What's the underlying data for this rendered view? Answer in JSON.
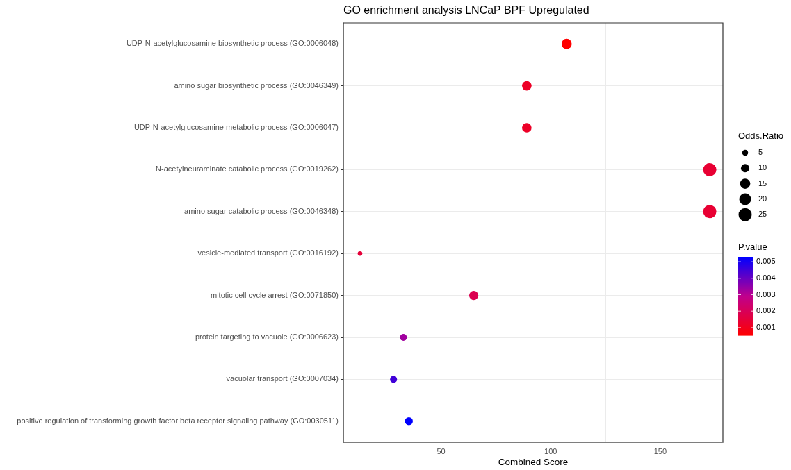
{
  "chart_data": {
    "type": "bubble",
    "title": "GO enrichment analysis LNCaP BPF Upregulated",
    "xlabel": "Combined Score",
    "legend_title": "Odds.Ratio",
    "clabel": "P.value",
    "categories": [
      "UDP-N-acetylglucosamine biosynthetic process (GO:0006048)",
      "amino sugar biosynthetic process (GO:0046349)",
      "UDP-N-acetylglucosamine metabolic process (GO:0006047)",
      "N-acetylneuraminate catabolic process (GO:0019262)",
      "amino sugar catabolic process (GO:0046348)",
      "vesicle-mediated transport (GO:0016192)",
      "mitotic cell cycle arrest (GO:0071850)",
      "protein targeting to vacuole (GO:0006623)",
      "vacuolar transport (GO:0007034)",
      "positive regulation of transforming growth factor beta receptor signaling pathway (GO:0030511)"
    ],
    "orientation": "horizontal",
    "values": [
      107.3,
      89.1,
      89.1,
      172.6,
      172.6,
      13.0,
      64.9,
      32.8,
      28.3,
      35.3
    ],
    "sizes": [
      15,
      13,
      13,
      25,
      25,
      3,
      12,
      7,
      7,
      9
    ],
    "size_legend": [
      5,
      10,
      15,
      20,
      25
    ],
    "cvalues": [
      0.00053,
      0.0012,
      0.0012,
      0.0014,
      0.0014,
      0.0015,
      0.0019,
      0.0033,
      0.0045,
      0.0053
    ],
    "clim": [
      0.00053,
      0.0053
    ],
    "cticks": [
      0.001,
      0.002,
      0.003,
      0.004,
      0.005
    ],
    "xlim": [
      5.4,
      178.6
    ],
    "xticks": [
      {
        "value": 25,
        "label": null
      },
      50,
      {
        "value": 75,
        "label": null
      },
      100,
      {
        "value": 125,
        "label": null
      },
      150,
      {
        "value": 175,
        "label": null
      }
    ],
    "grid": true
  }
}
